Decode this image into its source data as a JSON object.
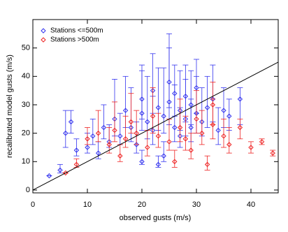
{
  "chart_data": {
    "type": "scatter",
    "xlabel": "observed gusts (m/s)",
    "ylabel": "recalibrated model gusts (m/s)",
    "xlim": [
      0,
      45
    ],
    "xticks": [
      0,
      10,
      20,
      30,
      40
    ],
    "ylim": [
      -1,
      60
    ],
    "yticks": [
      0,
      10,
      20,
      30,
      40,
      50
    ],
    "legend": "upper-left",
    "series": [
      {
        "name": "Stations <=500m",
        "color": "#3333ee",
        "x": [
          3,
          5,
          6,
          8,
          10,
          11,
          12,
          13,
          14,
          15,
          16,
          17,
          18,
          19,
          20,
          20,
          21,
          22,
          22,
          23,
          24,
          24,
          25,
          25,
          26,
          26,
          27,
          27,
          28,
          28,
          29,
          29,
          30,
          30,
          31,
          32,
          33,
          34,
          35,
          36,
          38,
          7,
          20,
          23
        ],
        "values": [
          5,
          7,
          20,
          14,
          15,
          19,
          13,
          22,
          17,
          25,
          19,
          28,
          22,
          16,
          27,
          32,
          24,
          21,
          35,
          29,
          26,
          12,
          31,
          38,
          22,
          34,
          28,
          19,
          33,
          25,
          30,
          22,
          36,
          27,
          24,
          29,
          32,
          21,
          28,
          26,
          32,
          24,
          10,
          9
        ],
        "yerr_low": [
          0,
          1,
          5,
          2,
          2,
          3,
          2,
          4,
          2,
          6,
          3,
          6,
          5,
          3,
          6,
          7,
          6,
          5,
          8,
          8,
          6,
          2,
          8,
          9,
          5,
          8,
          7,
          4,
          9,
          6,
          7,
          5,
          9,
          7,
          5,
          7,
          8,
          5,
          6,
          5,
          9,
          4,
          1,
          1
        ],
        "yerr_high": [
          0,
          2,
          8,
          4,
          5,
          6,
          4,
          8,
          6,
          14,
          8,
          12,
          14,
          8,
          15,
          12,
          16,
          12,
          13,
          14,
          17,
          5,
          19,
          17,
          15,
          10,
          14,
          10,
          11,
          14,
          12,
          10,
          10,
          13,
          12,
          11,
          12,
          8,
          8,
          6,
          4,
          4,
          4,
          3
        ]
      },
      {
        "name": "Stations >500m",
        "color": "#ee2222",
        "x": [
          6,
          8,
          10,
          12,
          14,
          15,
          16,
          17,
          18,
          19,
          21,
          22,
          23,
          25,
          26,
          27,
          28,
          29,
          30,
          31,
          32,
          33,
          35,
          36,
          38,
          40,
          42,
          44,
          33
        ],
        "values": [
          6,
          9,
          18,
          20,
          16,
          21,
          12,
          18,
          24,
          20,
          15,
          26,
          19,
          17,
          10,
          22,
          18,
          14,
          25,
          20,
          9,
          23,
          19,
          16,
          22,
          15,
          17,
          13,
          30
        ],
        "yerr_low": [
          0,
          1,
          2,
          3,
          3,
          4,
          2,
          3,
          4,
          4,
          3,
          6,
          4,
          3,
          2,
          5,
          4,
          3,
          5,
          4,
          2,
          5,
          4,
          3,
          4,
          2,
          1,
          1,
          7
        ],
        "yerr_high": [
          0,
          2,
          4,
          8,
          6,
          10,
          4,
          8,
          10,
          8,
          6,
          10,
          8,
          8,
          4,
          10,
          8,
          6,
          10,
          8,
          3,
          9,
          6,
          6,
          3,
          2,
          1,
          1,
          8
        ]
      }
    ],
    "reference_line": {
      "color": "#000000",
      "x": [
        0,
        45
      ],
      "values": [
        0,
        45
      ]
    }
  }
}
